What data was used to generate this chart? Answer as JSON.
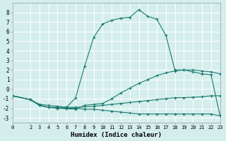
{
  "xlabel": "Humidex (Indice chaleur)",
  "bg_color": "#d4eeed",
  "grid_color": "#ffffff",
  "line_color": "#1a7a6e",
  "xlim": [
    0,
    23
  ],
  "ylim": [
    -3.5,
    9
  ],
  "xticks": [
    0,
    2,
    3,
    4,
    5,
    6,
    7,
    8,
    9,
    10,
    11,
    12,
    13,
    14,
    15,
    16,
    17,
    18,
    19,
    20,
    21,
    22,
    23
  ],
  "yticks": [
    -3,
    -2,
    -1,
    0,
    1,
    2,
    3,
    4,
    5,
    6,
    7,
    8
  ],
  "line1_x": [
    0,
    2,
    3,
    4,
    5,
    6,
    7,
    8,
    9,
    10,
    11,
    12,
    13,
    14,
    15,
    16,
    17,
    18,
    19,
    20,
    21,
    22,
    23
  ],
  "line1_y": [
    -0.7,
    -1.1,
    -1.6,
    -1.7,
    -1.8,
    -1.9,
    -1.9,
    -1.85,
    -1.8,
    -1.7,
    -1.6,
    -1.5,
    -1.4,
    -1.3,
    -1.2,
    -1.1,
    -1.0,
    -0.9,
    -0.9,
    -0.85,
    -0.8,
    -0.7,
    -0.7
  ],
  "line2_x": [
    0,
    2,
    3,
    4,
    5,
    6,
    7,
    8,
    9,
    10,
    11,
    12,
    13,
    14,
    15,
    16,
    17,
    18,
    19,
    20,
    21,
    22,
    23
  ],
  "line2_y": [
    -0.7,
    -1.1,
    -1.7,
    -1.9,
    -2.0,
    -2.0,
    -2.0,
    -2.1,
    -2.1,
    -2.2,
    -2.3,
    -2.4,
    -2.5,
    -2.6,
    -2.6,
    -2.6,
    -2.6,
    -2.6,
    -2.6,
    -2.6,
    -2.6,
    -2.6,
    -2.8
  ],
  "line3_x": [
    0,
    2,
    3,
    4,
    5,
    6,
    7,
    8,
    9,
    10,
    11,
    12,
    13,
    14,
    15,
    16,
    17,
    18,
    19,
    20,
    21,
    22,
    23
  ],
  "line3_y": [
    -0.7,
    -1.1,
    -1.7,
    -1.9,
    -2.0,
    -2.05,
    -2.1,
    -1.7,
    -1.6,
    -1.5,
    -1.0,
    -0.4,
    0.1,
    0.6,
    1.0,
    1.4,
    1.7,
    1.9,
    2.0,
    2.0,
    1.9,
    1.8,
    1.6
  ],
  "line4_x": [
    0,
    2,
    3,
    4,
    5,
    6,
    7,
    8,
    9,
    10,
    11,
    12,
    13,
    14,
    15,
    16,
    17,
    18,
    19,
    20,
    21,
    22,
    23
  ],
  "line4_y": [
    -0.7,
    -1.1,
    -1.7,
    -1.9,
    -1.9,
    -1.9,
    -0.9,
    2.4,
    5.4,
    6.8,
    7.2,
    7.4,
    7.5,
    8.3,
    7.6,
    7.3,
    5.6,
    2.0,
    2.0,
    1.8,
    1.6,
    1.5,
    -2.8
  ]
}
